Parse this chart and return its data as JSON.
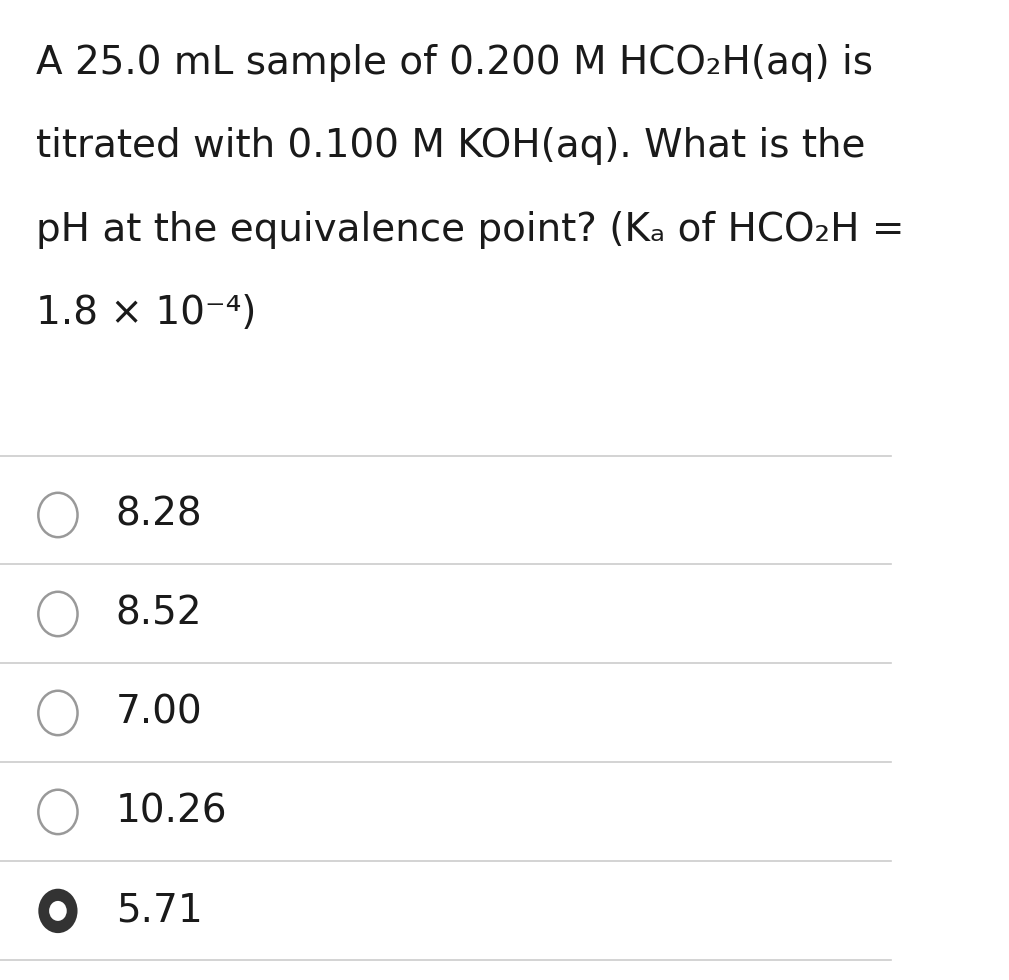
{
  "background_color": "#ffffff",
  "question_lines": [
    "A 25.0 mL sample of 0.200 M HCO₂H(aq) is",
    "titrated with 0.100 M KOH(aq). What is the",
    "pH at the equivalence point? (Kₐ of HCO₂H =",
    "1.8 × 10⁻⁴)"
  ],
  "choices": [
    "8.28",
    "8.52",
    "7.00",
    "10.26",
    "5.71"
  ],
  "selected_index": 4,
  "text_color": "#1a1a1a",
  "line_color": "#cccccc",
  "circle_edge_color": "#999999",
  "selected_fill_color": "#333333",
  "question_fontsize": 28,
  "choice_fontsize": 28,
  "font_family": "DejaVu Sans"
}
